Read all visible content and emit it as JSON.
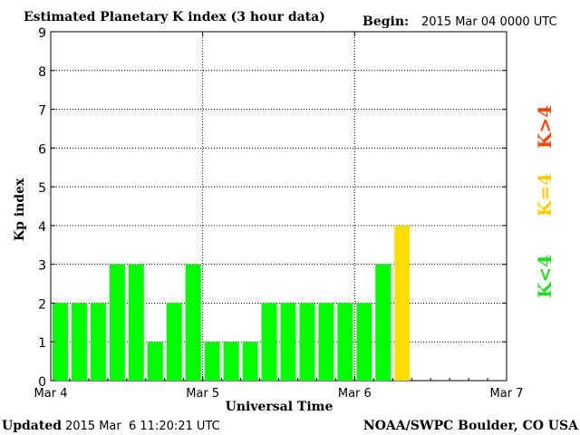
{
  "chart_data": {
    "type": "bar",
    "title": "Estimated Planetary K index (3 hour data)",
    "begin_label": "Begin:",
    "begin_value": "2015 Mar 04 0000 UTC",
    "xlabel": "Universal Time",
    "ylabel": "Kp index",
    "ylim": [
      0,
      9
    ],
    "xlim_hours": [
      0,
      72
    ],
    "yticks": [
      "0",
      "1",
      "2",
      "3",
      "4",
      "5",
      "6",
      "7",
      "8",
      "9"
    ],
    "xticks": [
      {
        "hour": 0,
        "label": "Mar 4"
      },
      {
        "hour": 24,
        "label": "Mar 5"
      },
      {
        "hour": 48,
        "label": "Mar 6"
      },
      {
        "hour": 72,
        "label": "Mar 7"
      }
    ],
    "grid": true,
    "bar_interval_hours": 3,
    "values": [
      2,
      2,
      2,
      3,
      3,
      1,
      2,
      3,
      1,
      1,
      1,
      2,
      2,
      2,
      2,
      2,
      2,
      3,
      4
    ],
    "colors": {
      "below_4": "#00ff00",
      "equal_4": "#ffdd00",
      "above_4": "#ff4400"
    },
    "legend": {
      "placement": "right",
      "items": [
        {
          "label": "K<4",
          "color": "#22dd22"
        },
        {
          "label": "K=4",
          "color": "#ffcc00"
        },
        {
          "label": "K>4",
          "color": "#ff4400"
        }
      ]
    }
  },
  "footer": {
    "updated_label": "Updated",
    "updated_value": "2015 Mar  6 11:20:21 UTC",
    "source": "NOAA/SWPC Boulder, CO USA"
  }
}
